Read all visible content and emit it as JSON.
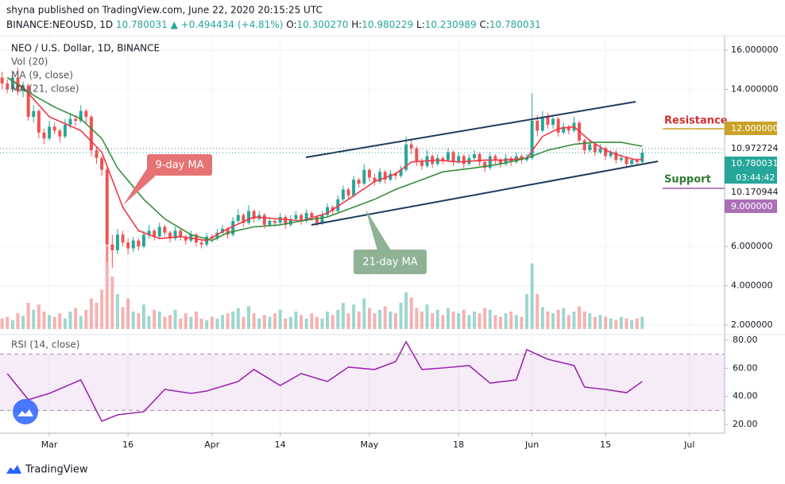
{
  "header": {
    "published": "shyna published on TradingView.com, June 22, 2020 20:15:25 UTC",
    "symbol": "BINANCE:NEOUSD, 1D",
    "last": "10.780031",
    "change": "▲ +0.494434 (+4.81%)",
    "o_label": "O:",
    "o": "10.300270",
    "h_label": "H:",
    "h": "10.980229",
    "l_label": "L:",
    "l": "10.230989",
    "c_label": "C:",
    "c": "10.780031"
  },
  "chart_data": {
    "type": "candlestick",
    "legend": [
      "NEO / U.S. Dollar, 1D, BINANCE",
      "Vol (20)",
      "MA (9, close)",
      "MA (21, close)"
    ],
    "up_color": "#26a69a",
    "down_color": "#ef5350",
    "xlim": [
      -0.4,
      137.7
    ],
    "ylim": [
      1.55,
      16.73
    ],
    "vlim": [
      0,
      100
    ],
    "xticks": [
      {
        "value": 9,
        "label": "Mar"
      },
      {
        "value": 24,
        "label": "16"
      },
      {
        "value": 40,
        "label": "Apr"
      },
      {
        "value": 53,
        "label": "14"
      },
      {
        "value": 70,
        "label": "May"
      },
      {
        "value": 87,
        "label": "18"
      },
      {
        "value": 101,
        "label": "Jun"
      },
      {
        "value": 115,
        "label": "15"
      },
      {
        "value": 131,
        "label": "Jul"
      }
    ],
    "yticks": [
      {
        "value": 16,
        "label": "16.000000"
      },
      {
        "value": 14,
        "label": "14.000000"
      },
      {
        "value": 6,
        "label": "6.000000"
      },
      {
        "value": 4,
        "label": "4.000000"
      },
      {
        "value": 2,
        "label": "2.000000"
      }
    ],
    "grid": true,
    "ohlc": [
      [
        14.6,
        14.9,
        14.0,
        14.3
      ],
      [
        14.3,
        14.5,
        13.8,
        14.0
      ],
      [
        14.0,
        14.9,
        13.9,
        14.6
      ],
      [
        14.6,
        15.1,
        13.7,
        13.9
      ],
      [
        13.9,
        14.4,
        13.6,
        14.2
      ],
      [
        14.2,
        14.3,
        12.4,
        12.6
      ],
      [
        12.6,
        13.2,
        12.3,
        12.9
      ],
      [
        12.9,
        13.0,
        11.5,
        11.8
      ],
      [
        11.8,
        12.0,
        11.2,
        11.5
      ],
      [
        11.5,
        12.4,
        11.4,
        12.1
      ],
      [
        12.1,
        12.3,
        11.7,
        11.9
      ],
      [
        11.9,
        12.0,
        11.3,
        11.6
      ],
      [
        11.6,
        12.5,
        11.5,
        12.2
      ],
      [
        12.2,
        12.8,
        12.0,
        12.5
      ],
      [
        12.5,
        12.7,
        12.1,
        12.4
      ],
      [
        12.4,
        13.2,
        12.3,
        12.9
      ],
      [
        12.9,
        13.0,
        12.3,
        12.6
      ],
      [
        12.6,
        12.7,
        10.6,
        10.9
      ],
      [
        10.9,
        11.1,
        10.2,
        10.5
      ],
      [
        10.5,
        10.6,
        9.6,
        9.9
      ],
      [
        9.9,
        10.0,
        5.2,
        6.1
      ],
      [
        6.1,
        6.6,
        4.9,
        5.8
      ],
      [
        5.8,
        6.9,
        5.6,
        6.6
      ],
      [
        6.6,
        6.8,
        6.0,
        6.2
      ],
      [
        6.2,
        6.4,
        5.6,
        5.9
      ],
      [
        5.9,
        6.5,
        5.7,
        6.3
      ],
      [
        6.3,
        6.4,
        5.8,
        6.0
      ],
      [
        6.0,
        6.8,
        5.9,
        6.6
      ],
      [
        6.6,
        7.1,
        6.4,
        6.8
      ],
      [
        6.8,
        6.9,
        6.3,
        6.5
      ],
      [
        6.5,
        7.2,
        6.4,
        7.0
      ],
      [
        7.0,
        7.1,
        6.5,
        6.7
      ],
      [
        6.7,
        6.8,
        6.2,
        6.4
      ],
      [
        6.4,
        7.0,
        6.3,
        6.8
      ],
      [
        6.8,
        6.9,
        6.3,
        6.5
      ],
      [
        6.5,
        6.6,
        6.1,
        6.3
      ],
      [
        6.3,
        6.8,
        6.2,
        6.6
      ],
      [
        6.6,
        6.7,
        6.0,
        6.2
      ],
      [
        6.2,
        6.3,
        5.9,
        6.1
      ],
      [
        6.1,
        6.7,
        6.0,
        6.5
      ],
      [
        6.5,
        6.6,
        6.2,
        6.4
      ],
      [
        6.4,
        6.9,
        6.3,
        6.7
      ],
      [
        6.7,
        7.1,
        6.6,
        6.9
      ],
      [
        6.9,
        7.0,
        6.4,
        6.6
      ],
      [
        6.6,
        7.5,
        6.5,
        7.3
      ],
      [
        7.3,
        7.9,
        7.2,
        7.6
      ],
      [
        7.6,
        7.7,
        7.0,
        7.2
      ],
      [
        7.2,
        8.1,
        7.1,
        7.8
      ],
      [
        7.8,
        7.9,
        7.2,
        7.4
      ],
      [
        7.4,
        7.8,
        7.3,
        7.6
      ],
      [
        7.6,
        7.7,
        6.9,
        7.1
      ],
      [
        7.1,
        7.5,
        7.0,
        7.3
      ],
      [
        7.3,
        7.4,
        7.0,
        7.2
      ],
      [
        7.2,
        7.7,
        7.1,
        7.5
      ],
      [
        7.5,
        7.6,
        6.9,
        7.1
      ],
      [
        7.1,
        7.6,
        7.0,
        7.4
      ],
      [
        7.4,
        7.8,
        7.3,
        7.6
      ],
      [
        7.6,
        7.7,
        7.1,
        7.3
      ],
      [
        7.3,
        7.9,
        7.2,
        7.7
      ],
      [
        7.7,
        7.8,
        7.3,
        7.5
      ],
      [
        7.5,
        7.6,
        7.0,
        7.2
      ],
      [
        7.2,
        7.8,
        7.1,
        7.6
      ],
      [
        7.6,
        8.2,
        7.5,
        8.0
      ],
      [
        8.0,
        8.1,
        7.6,
        7.8
      ],
      [
        7.8,
        8.6,
        7.7,
        8.4
      ],
      [
        8.4,
        9.1,
        8.3,
        8.9
      ],
      [
        8.9,
        9.0,
        8.4,
        8.6
      ],
      [
        8.6,
        9.6,
        8.5,
        9.4
      ],
      [
        9.4,
        9.5,
        9.0,
        9.2
      ],
      [
        9.2,
        10.2,
        9.1,
        9.9
      ],
      [
        9.9,
        10.0,
        9.3,
        9.5
      ],
      [
        9.5,
        9.7,
        9.1,
        9.3
      ],
      [
        9.3,
        10.0,
        9.2,
        9.8
      ],
      [
        9.8,
        9.9,
        9.2,
        9.4
      ],
      [
        9.4,
        9.9,
        9.3,
        9.7
      ],
      [
        9.7,
        9.8,
        9.4,
        9.6
      ],
      [
        9.6,
        10.1,
        9.5,
        9.9
      ],
      [
        9.9,
        11.6,
        9.8,
        11.2
      ],
      [
        11.2,
        11.5,
        10.7,
        11.0
      ],
      [
        11.0,
        11.1,
        10.1,
        10.3
      ],
      [
        10.3,
        10.5,
        9.9,
        10.1
      ],
      [
        10.1,
        10.9,
        10.0,
        10.6
      ],
      [
        10.6,
        10.7,
        10.0,
        10.2
      ],
      [
        10.2,
        10.7,
        10.1,
        10.5
      ],
      [
        10.5,
        10.6,
        10.2,
        10.4
      ],
      [
        10.4,
        11.0,
        10.3,
        10.8
      ],
      [
        10.8,
        10.9,
        10.1,
        10.3
      ],
      [
        10.3,
        10.8,
        10.2,
        10.6
      ],
      [
        10.6,
        10.7,
        10.0,
        10.2
      ],
      [
        10.2,
        10.7,
        10.1,
        10.5
      ],
      [
        10.5,
        10.9,
        10.4,
        10.7
      ],
      [
        10.7,
        10.8,
        10.1,
        10.3
      ],
      [
        10.3,
        10.4,
        9.8,
        10.0
      ],
      [
        10.0,
        10.8,
        9.9,
        10.6
      ],
      [
        10.6,
        10.7,
        10.2,
        10.4
      ],
      [
        10.4,
        10.5,
        10.0,
        10.2
      ],
      [
        10.2,
        10.7,
        10.1,
        10.5
      ],
      [
        10.5,
        10.6,
        10.1,
        10.3
      ],
      [
        10.3,
        10.8,
        10.2,
        10.6
      ],
      [
        10.6,
        10.7,
        10.2,
        10.4
      ],
      [
        10.4,
        10.7,
        10.3,
        10.5
      ],
      [
        10.5,
        13.8,
        10.4,
        12.4
      ],
      [
        12.4,
        12.7,
        11.6,
        11.9
      ],
      [
        11.9,
        12.9,
        11.8,
        12.6
      ],
      [
        12.6,
        12.8,
        12.0,
        12.2
      ],
      [
        12.2,
        12.7,
        12.0,
        12.5
      ],
      [
        12.5,
        12.6,
        11.6,
        11.8
      ],
      [
        11.8,
        12.3,
        11.7,
        12.1
      ],
      [
        12.1,
        12.2,
        11.7,
        11.9
      ],
      [
        11.9,
        12.6,
        11.8,
        12.3
      ],
      [
        12.3,
        12.4,
        11.2,
        11.4
      ],
      [
        11.4,
        11.5,
        10.7,
        10.9
      ],
      [
        10.9,
        11.4,
        10.8,
        11.2
      ],
      [
        11.2,
        11.3,
        10.6,
        10.8
      ],
      [
        10.8,
        11.2,
        10.7,
        11.0
      ],
      [
        11.0,
        11.1,
        10.4,
        10.6
      ],
      [
        10.6,
        10.9,
        10.5,
        10.8
      ],
      [
        10.8,
        10.9,
        10.2,
        10.4
      ],
      [
        10.4,
        10.7,
        10.3,
        10.5
      ],
      [
        10.5,
        10.6,
        10.0,
        10.2
      ],
      [
        10.2,
        10.5,
        10.1,
        10.4
      ],
      [
        10.4,
        10.5,
        10.1,
        10.3
      ],
      [
        10.30027,
        10.980229,
        10.230989,
        10.780031
      ]
    ],
    "volume": [
      12,
      14,
      10,
      18,
      15,
      30,
      22,
      28,
      20,
      16,
      14,
      18,
      12,
      20,
      24,
      15,
      22,
      35,
      30,
      45,
      95,
      60,
      40,
      25,
      35,
      20,
      18,
      28,
      15,
      22,
      20,
      14,
      16,
      22,
      12,
      18,
      14,
      20,
      12,
      10,
      14,
      12,
      16,
      18,
      20,
      24,
      14,
      26,
      18,
      12,
      16,
      14,
      18,
      22,
      12,
      14,
      20,
      16,
      12,
      18,
      14,
      12,
      20,
      16,
      22,
      30,
      18,
      28,
      20,
      35,
      24,
      18,
      22,
      26,
      20,
      18,
      30,
      42,
      36,
      24,
      20,
      28,
      18,
      22,
      16,
      24,
      20,
      18,
      22,
      16,
      20,
      18,
      24,
      22,
      16,
      14,
      18,
      20,
      16,
      14,
      40,
      75,
      40,
      25,
      20,
      18,
      22,
      24,
      16,
      20,
      26,
      20,
      18,
      14,
      16,
      14,
      12,
      10,
      14,
      12,
      10,
      12,
      14
    ],
    "ma": [
      {
        "name": "MA (9, close)",
        "color": "#f23645",
        "x": [
          1,
          4,
          9,
          15,
          19,
          23,
          26,
          30,
          34,
          39,
          43,
          48,
          53,
          57,
          62,
          66,
          71,
          75,
          78,
          83,
          87,
          92,
          96,
          100,
          103,
          106,
          109,
          112,
          115,
          118,
          121,
          122
        ],
        "values": [
          14.6,
          14.1,
          12.6,
          11.9,
          10.8,
          8.0,
          6.8,
          6.4,
          6.5,
          6.3,
          6.9,
          7.5,
          7.4,
          7.3,
          7.7,
          8.4,
          9.3,
          9.7,
          10.3,
          10.4,
          10.3,
          10.4,
          10.4,
          10.5,
          11.6,
          12.0,
          12.1,
          11.4,
          10.9,
          10.6,
          10.4,
          10.45
        ]
      },
      {
        "name": "MA (21, close)",
        "color": "#388e3c",
        "x": [
          1,
          6,
          10,
          15,
          19,
          22,
          27,
          31,
          36,
          40,
          43,
          48,
          53,
          57,
          62,
          66,
          71,
          75,
          80,
          84,
          90,
          95,
          100,
          104,
          109,
          113,
          118,
          122
        ],
        "values": [
          14.6,
          13.7,
          13.1,
          12.5,
          11.5,
          10.0,
          8.4,
          7.4,
          6.6,
          6.3,
          6.7,
          7.0,
          7.1,
          7.3,
          7.5,
          7.9,
          8.4,
          8.9,
          9.4,
          9.8,
          10.0,
          10.2,
          10.5,
          10.9,
          11.2,
          11.3,
          11.3,
          11.1
        ]
      }
    ],
    "annotations": {
      "ma9": "9-day MA",
      "ma21": "21-day MA",
      "resistance": "Resistance",
      "support": "Support"
    },
    "price_labels": [
      "12.000000",
      "10.972724",
      "10.780031",
      "03:44:42",
      "10.170944",
      "9.000000"
    ],
    "rsi": {
      "title": "RSI (14, close)",
      "color": "#9c27b0",
      "ylim": [
        13.8,
        83.4
      ],
      "bands": [
        30,
        70
      ],
      "yticks": [
        {
          "value": 80,
          "label": "80.00"
        },
        {
          "value": 60,
          "label": "60.00"
        },
        {
          "value": 40,
          "label": "40.00"
        },
        {
          "value": 20,
          "label": "20.00"
        }
      ],
      "x": [
        1,
        5,
        9,
        15,
        19,
        22,
        27,
        31,
        36,
        39,
        45,
        48,
        53,
        57,
        62,
        66,
        71,
        75,
        77,
        80,
        84,
        89,
        93,
        98,
        100,
        104,
        109,
        111,
        115,
        119,
        122
      ],
      "values": [
        56.2,
        37.6,
        42.1,
        51.7,
        22.3,
        26.8,
        29.1,
        44.9,
        42.1,
        43.8,
        50.6,
        59.1,
        47.7,
        56.2,
        50.6,
        60.8,
        59.1,
        64.7,
        78.9,
        59.1,
        60.2,
        61.9,
        49.4,
        51.7,
        73.2,
        66.4,
        61.9,
        46.6,
        44.9,
        42.6,
        50.6
      ]
    },
    "brand": "TradingView"
  }
}
